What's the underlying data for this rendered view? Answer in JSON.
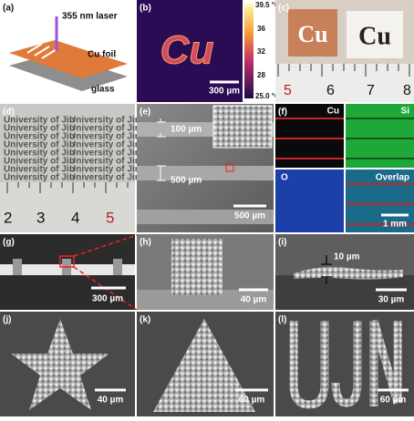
{
  "a": {
    "label": "(a)",
    "laser": "355 nm laser",
    "foil": "Cu foil",
    "substrate": "glass"
  },
  "b": {
    "label": "(b)",
    "pattern": "Cu",
    "colorbar": [
      "39.5 °C",
      "36",
      "32",
      "28",
      "25.0 °C"
    ],
    "scale": "300 µm"
  },
  "c": {
    "label": "(c)",
    "samples": [
      "Cu",
      "Cu"
    ],
    "ruler": [
      "5",
      "6",
      "7",
      "8"
    ]
  },
  "d": {
    "label": "(d)",
    "print": "University of Jin",
    "ruler": [
      "2",
      "3",
      "4",
      "5"
    ]
  },
  "e": {
    "label": "(e)",
    "width": "100 µm",
    "spacing": "500 µm",
    "scale": "500 µm"
  },
  "f": {
    "label": "(f)",
    "maps": [
      "Cu",
      "Si",
      "O",
      "Overlap"
    ],
    "scale": "1 mm"
  },
  "g": {
    "label": "(g)",
    "scale": "300 µm"
  },
  "h": {
    "label": "(h)",
    "scale": "40 µm"
  },
  "i": {
    "label": "(i)",
    "thickness": "10 µm",
    "scale": "30 µm"
  },
  "j": {
    "label": "(j)",
    "scale": "40 µm"
  },
  "k": {
    "label": "(k)",
    "scale": "60 µm"
  },
  "l": {
    "label": "(l)",
    "scale": "60 µm"
  }
}
